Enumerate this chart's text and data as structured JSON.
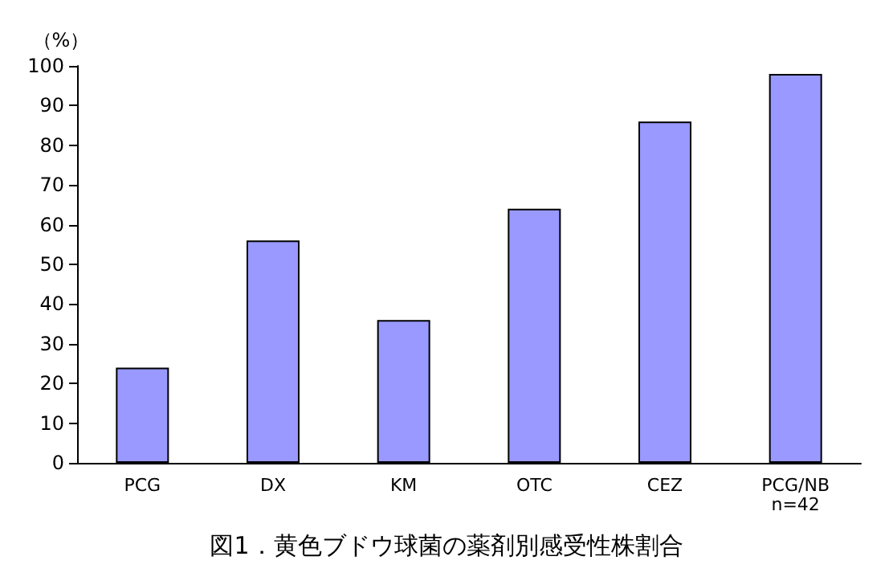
{
  "chart_data": {
    "type": "bar",
    "title": "図1．黄色ブドウ球菌の薬剤別感受性株割合",
    "ylabel": "（%）",
    "categories": [
      "PCG",
      "DX",
      "KM",
      "OTC",
      "CEZ",
      "PCG/NB\nn=42"
    ],
    "values": [
      24,
      56,
      36,
      64,
      86,
      98
    ],
    "color": "#9999ff",
    "ylim": [
      0,
      100
    ],
    "yticks": [
      0,
      10,
      20,
      30,
      40,
      50,
      60,
      70,
      80,
      90,
      100
    ],
    "grid": false
  }
}
